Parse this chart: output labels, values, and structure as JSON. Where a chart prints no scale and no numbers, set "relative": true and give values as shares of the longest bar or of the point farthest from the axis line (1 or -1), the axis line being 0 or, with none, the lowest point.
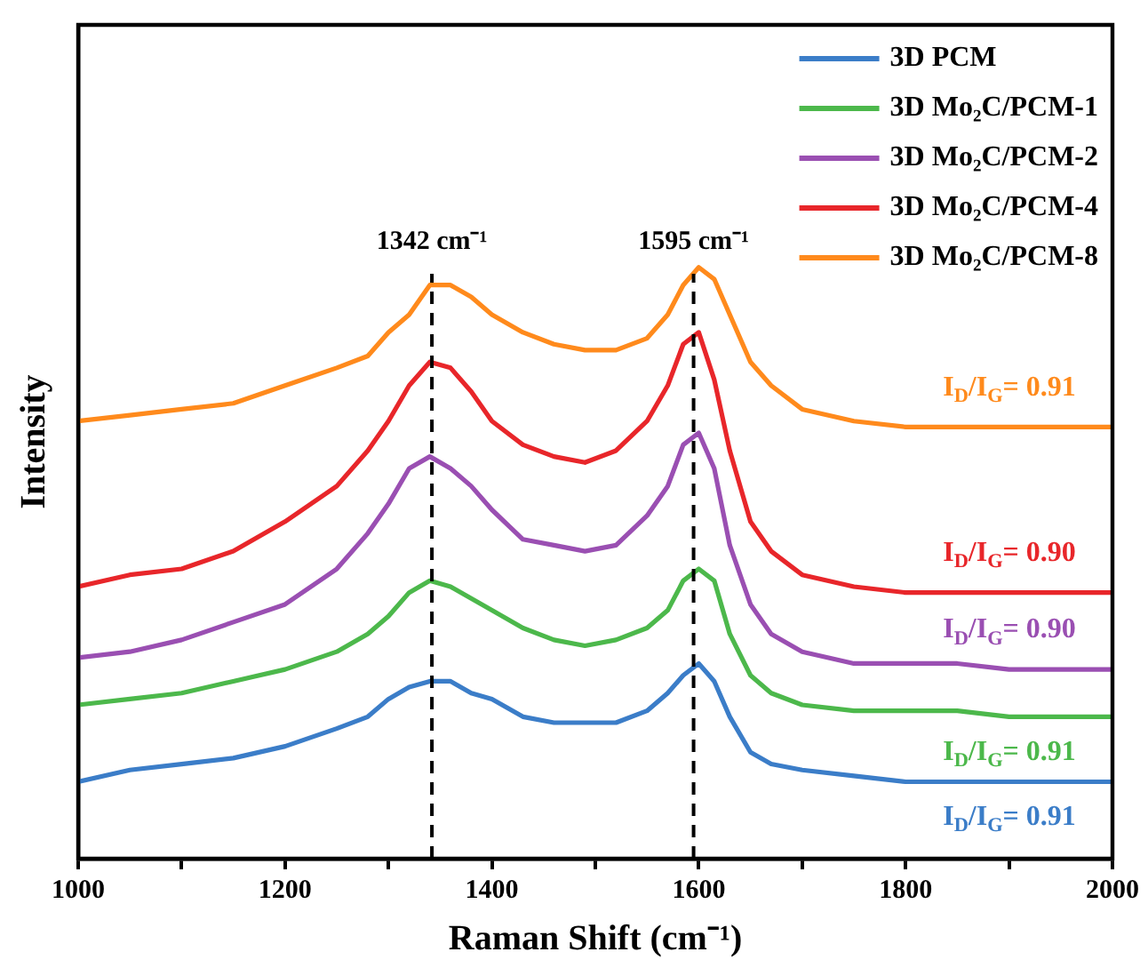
{
  "chart_data": {
    "type": "line",
    "relative": true,
    "xlabel": "Raman Shift (cm⁻¹)",
    "ylabel": "Intensity",
    "x": [
      1000,
      1050,
      1100,
      1150,
      1200,
      1250,
      1280,
      1300,
      1320,
      1340,
      1360,
      1380,
      1400,
      1430,
      1460,
      1490,
      1520,
      1550,
      1570,
      1585,
      1600,
      1615,
      1630,
      1650,
      1670,
      1700,
      1750,
      1800,
      1850,
      1900,
      1950,
      2000
    ],
    "xlim": [
      1000,
      2000
    ],
    "xticks": [
      1000,
      {
        "value": 1100,
        "label": null
      },
      1200,
      {
        "value": 1300,
        "label": null
      },
      1400,
      {
        "value": 1500,
        "label": null
      },
      1600,
      {
        "value": 1700,
        "label": null
      },
      1800,
      {
        "value": 1900,
        "label": null
      },
      2000
    ],
    "series": [
      {
        "name": "3D PCM",
        "color": "#3b7dc8",
        "values": [
          0.13,
          0.15,
          0.16,
          0.17,
          0.19,
          0.22,
          0.24,
          0.27,
          0.29,
          0.3,
          0.3,
          0.28,
          0.27,
          0.24,
          0.23,
          0.23,
          0.23,
          0.25,
          0.28,
          0.31,
          0.33,
          0.3,
          0.24,
          0.18,
          0.16,
          0.15,
          0.14,
          0.13,
          0.13,
          0.13,
          0.13,
          0.13
        ]
      },
      {
        "name": "3D Mo₂C/PCM-1",
        "color": "#4cb84b",
        "values": [
          0.26,
          0.27,
          0.28,
          0.3,
          0.32,
          0.35,
          0.38,
          0.41,
          0.45,
          0.47,
          0.46,
          0.44,
          0.42,
          0.39,
          0.37,
          0.36,
          0.37,
          0.39,
          0.42,
          0.47,
          0.49,
          0.47,
          0.38,
          0.31,
          0.28,
          0.26,
          0.25,
          0.25,
          0.25,
          0.24,
          0.24,
          0.24
        ]
      },
      {
        "name": "3D Mo₂C/PCM-2",
        "color": "#9a4fb2",
        "values": [
          0.34,
          0.35,
          0.37,
          0.4,
          0.43,
          0.49,
          0.55,
          0.6,
          0.66,
          0.68,
          0.66,
          0.63,
          0.59,
          0.54,
          0.53,
          0.52,
          0.53,
          0.58,
          0.63,
          0.7,
          0.72,
          0.66,
          0.53,
          0.43,
          0.38,
          0.35,
          0.33,
          0.33,
          0.33,
          0.32,
          0.32,
          0.32
        ]
      },
      {
        "name": "3D Mo₂C/PCM-4",
        "color": "#e8262a",
        "values": [
          0.46,
          0.48,
          0.49,
          0.52,
          0.57,
          0.63,
          0.69,
          0.74,
          0.8,
          0.84,
          0.83,
          0.79,
          0.74,
          0.7,
          0.68,
          0.67,
          0.69,
          0.74,
          0.8,
          0.87,
          0.89,
          0.81,
          0.69,
          0.57,
          0.52,
          0.48,
          0.46,
          0.45,
          0.45,
          0.45,
          0.45,
          0.45
        ]
      },
      {
        "name": "3D Mo₂C/PCM-8",
        "color": "#ff8a1c",
        "values": [
          0.74,
          0.75,
          0.76,
          0.77,
          0.8,
          0.83,
          0.85,
          0.89,
          0.92,
          0.97,
          0.97,
          0.95,
          0.92,
          0.89,
          0.87,
          0.86,
          0.86,
          0.88,
          0.92,
          0.97,
          1.0,
          0.98,
          0.92,
          0.84,
          0.8,
          0.76,
          0.74,
          0.73,
          0.73,
          0.73,
          0.73,
          0.73
        ]
      }
    ],
    "ref_lines": [
      {
        "axis": "x",
        "value": 1342,
        "label": "1342 cm⁻¹",
        "line_style": "dashed",
        "color": "#000000"
      },
      {
        "axis": "x",
        "value": 1595,
        "label": "1595 cm⁻¹",
        "line_style": "dashed",
        "color": "#000000"
      }
    ],
    "annotations": [
      "I$_{D}$/I$_{G}$= 0.91",
      "I$_{D}$/I$_{G}$= 0.91",
      "I$_{D}$/I$_{G}$= 0.90",
      "I$_{D}$/I$_{G}$= 0.90",
      "I$_{D}$/I$_{G}$= 0.91"
    ],
    "legend": "top right",
    "grid": false,
    "marker": "none",
    "line_style": "solid"
  }
}
